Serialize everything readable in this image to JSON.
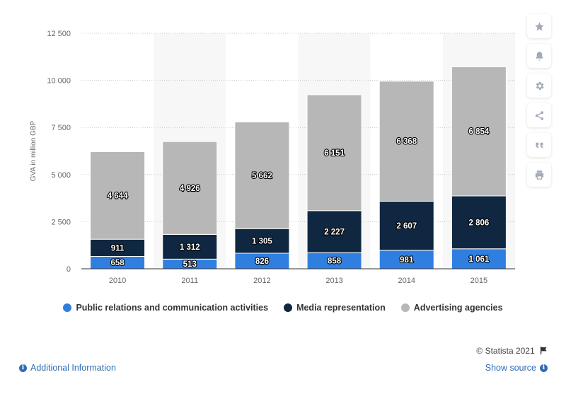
{
  "chart_data": {
    "type": "bar",
    "stacked": true,
    "categories": [
      "2010",
      "2011",
      "2012",
      "2013",
      "2014",
      "2015"
    ],
    "series": [
      {
        "name": "Public relations and communication activities",
        "color": "#2f7fe0",
        "values": [
          658,
          513,
          826,
          858,
          981,
          1061
        ],
        "labels": [
          "658",
          "513",
          "826",
          "858",
          "981",
          "1 061"
        ]
      },
      {
        "name": "Media representation",
        "color": "#0f2741",
        "values": [
          911,
          1312,
          1305,
          2227,
          2607,
          2806
        ],
        "labels": [
          "911",
          "1 312",
          "1 305",
          "2 227",
          "2 607",
          "2 806"
        ]
      },
      {
        "name": "Advertising agencies",
        "color": "#b7b7b7",
        "values": [
          4644,
          4926,
          5662,
          6151,
          6368,
          6854
        ],
        "labels": [
          "4 644",
          "4 926",
          "5 662",
          "6 151",
          "6 368",
          "6 854"
        ]
      }
    ],
    "ylabel": "GVA in million GBP",
    "ylim": [
      0,
      12500
    ],
    "yticks": [
      {
        "value": 0,
        "label": "0"
      },
      {
        "value": 2500,
        "label": "2 500"
      },
      {
        "value": 5000,
        "label": "5 000"
      },
      {
        "value": 7500,
        "label": "7 500"
      },
      {
        "value": 10000,
        "label": "10 000"
      },
      {
        "value": 12500,
        "label": "12 500"
      }
    ],
    "grid": true,
    "legend_position": "bottom"
  },
  "toolbar": {
    "icons": [
      "star-icon",
      "bell-icon",
      "gear-icon",
      "share-icon",
      "quote-icon",
      "print-icon"
    ]
  },
  "footer": {
    "credit": "© Statista 2021",
    "additional_info": "Additional Information",
    "show_source": "Show source"
  }
}
